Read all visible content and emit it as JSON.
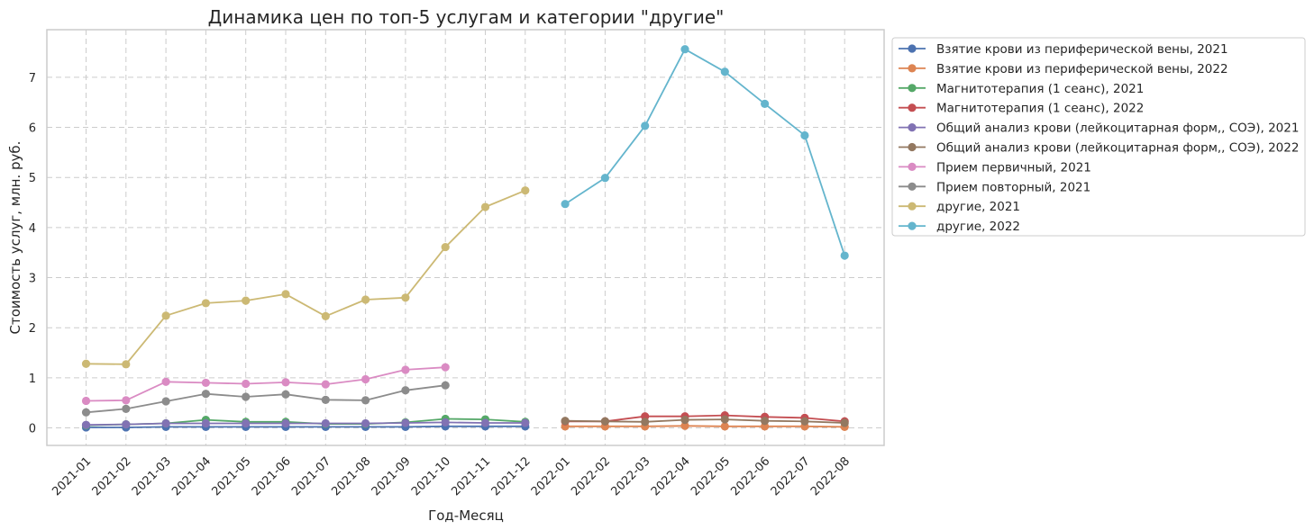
{
  "chart_data": {
    "type": "line",
    "title": "Динамика цен по топ-5 услугам и категории \"другие\"",
    "xlabel": "Год-Месяц",
    "ylabel": "Стоимость услуг, млн. руб.",
    "ylim": [
      -0.35,
      7.95
    ],
    "yticks": [
      0,
      1,
      2,
      3,
      4,
      5,
      6,
      7
    ],
    "grid": true,
    "legend_position": "outside-right-top",
    "categories": [
      "2021-01",
      "2021-02",
      "2021-03",
      "2021-04",
      "2021-05",
      "2021-06",
      "2021-07",
      "2021-08",
      "2021-09",
      "2021-10",
      "2021-11",
      "2021-12",
      "2022-01",
      "2022-02",
      "2022-03",
      "2022-04",
      "2022-05",
      "2022-06",
      "2022-07",
      "2022-08"
    ],
    "series": [
      {
        "name": "Взятие крови из периферической вены, 2021",
        "color": "#4c72b0",
        "values": [
          0.01,
          0.01,
          0.02,
          0.02,
          0.02,
          0.02,
          0.02,
          0.02,
          0.02,
          0.03,
          0.03,
          0.03,
          null,
          null,
          null,
          null,
          null,
          null,
          null,
          null
        ]
      },
      {
        "name": "Взятие крови из периферической вены, 2022",
        "color": "#dd8452",
        "values": [
          null,
          null,
          null,
          null,
          null,
          null,
          null,
          null,
          null,
          null,
          null,
          null,
          0.03,
          0.03,
          0.03,
          0.04,
          0.03,
          0.03,
          0.03,
          0.02
        ]
      },
      {
        "name": "Магнитотерапия (1 сеанс), 2021",
        "color": "#55a868",
        "values": [
          0.05,
          0.07,
          0.09,
          0.16,
          0.12,
          0.12,
          0.08,
          0.08,
          0.11,
          0.18,
          0.17,
          0.12,
          null,
          null,
          null,
          null,
          null,
          null,
          null,
          null
        ]
      },
      {
        "name": "Магнитотерапия (1 сеанс), 2022",
        "color": "#c44e52",
        "values": [
          null,
          null,
          null,
          null,
          null,
          null,
          null,
          null,
          null,
          null,
          null,
          null,
          0.13,
          0.13,
          0.23,
          0.23,
          0.25,
          0.22,
          0.2,
          0.13
        ]
      },
      {
        "name": "Общий анализ крови (лейкоцитарная форм,, СОЭ), 2021",
        "color": "#8172b3",
        "values": [
          0.06,
          0.07,
          0.09,
          0.09,
          0.09,
          0.09,
          0.09,
          0.09,
          0.1,
          0.11,
          0.1,
          0.1,
          null,
          null,
          null,
          null,
          null,
          null,
          null,
          null
        ]
      },
      {
        "name": "Общий анализ крови (лейкоцитарная форм,, СОЭ), 2022",
        "color": "#937860",
        "values": [
          null,
          null,
          null,
          null,
          null,
          null,
          null,
          null,
          null,
          null,
          null,
          null,
          0.14,
          0.13,
          0.12,
          0.16,
          0.17,
          0.14,
          0.13,
          0.1
        ]
      },
      {
        "name": "Прием первичный, 2021",
        "color": "#da8bc3",
        "values": [
          0.54,
          0.55,
          0.92,
          0.9,
          0.88,
          0.91,
          0.87,
          0.97,
          1.16,
          1.21,
          null,
          null,
          null,
          null,
          null,
          null,
          null,
          null,
          null,
          null
        ]
      },
      {
        "name": "Прием повторный, 2021",
        "color": "#8c8c8c",
        "values": [
          0.31,
          0.38,
          0.53,
          0.68,
          0.62,
          0.67,
          0.56,
          0.55,
          0.75,
          0.85,
          null,
          null,
          null,
          null,
          null,
          null,
          null,
          null,
          null,
          null
        ]
      },
      {
        "name": "другие, 2021",
        "color": "#ccb974",
        "values": [
          1.28,
          1.27,
          2.24,
          2.49,
          2.54,
          2.67,
          2.23,
          2.56,
          2.6,
          3.61,
          4.41,
          4.74,
          null,
          null,
          null,
          null,
          null,
          null,
          null,
          null
        ]
      },
      {
        "name": "другие, 2022",
        "color": "#64b5cd",
        "values": [
          null,
          null,
          null,
          null,
          null,
          null,
          null,
          null,
          null,
          null,
          null,
          null,
          4.47,
          4.99,
          6.03,
          7.56,
          7.11,
          6.47,
          5.84,
          3.44
        ]
      }
    ]
  }
}
